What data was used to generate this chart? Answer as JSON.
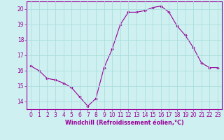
{
  "x": [
    0,
    1,
    2,
    3,
    4,
    5,
    6,
    7,
    8,
    9,
    10,
    11,
    12,
    13,
    14,
    15,
    16,
    17,
    18,
    19,
    20,
    21,
    22,
    23
  ],
  "y": [
    16.3,
    16.0,
    15.5,
    15.4,
    15.2,
    14.9,
    14.3,
    13.7,
    14.2,
    16.2,
    17.4,
    19.0,
    19.8,
    19.8,
    19.9,
    20.1,
    20.2,
    19.8,
    18.9,
    18.3,
    17.5,
    16.5,
    16.2,
    16.2
  ],
  "line_color": "#990099",
  "marker": "D",
  "marker_size": 1.8,
  "bg_color": "#cff0f0",
  "grid_color": "#aadddd",
  "xlabel": "Windchill (Refroidissement éolien,°C)",
  "xlabel_color": "#990099",
  "tick_color": "#990099",
  "spine_color": "#990099",
  "ylim": [
    13.5,
    20.5
  ],
  "xlim": [
    -0.5,
    23.5
  ],
  "yticks": [
    14,
    15,
    16,
    17,
    18,
    19,
    20
  ],
  "xticks": [
    0,
    1,
    2,
    3,
    4,
    5,
    6,
    7,
    8,
    9,
    10,
    11,
    12,
    13,
    14,
    15,
    16,
    17,
    18,
    19,
    20,
    21,
    22,
    23
  ],
  "line_width": 0.8,
  "tick_fontsize": 5.5,
  "xlabel_fontsize": 5.8
}
